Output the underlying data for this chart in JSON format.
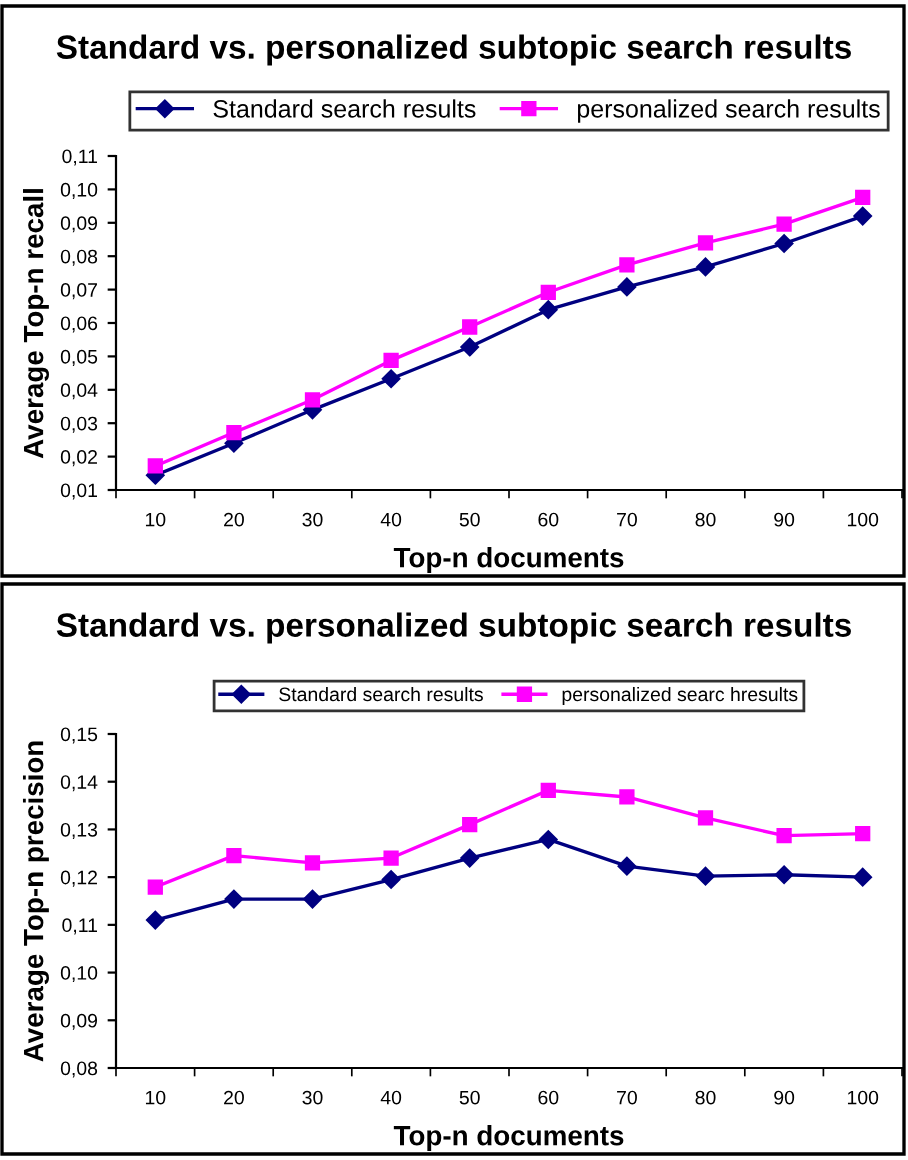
{
  "chart_data": [
    {
      "type": "line",
      "title": "Standard vs. personalized subtopic search results",
      "xlabel": "Top-n documents",
      "ylabel": "Average Top-n recall",
      "categories": [
        "10",
        "20",
        "30",
        "40",
        "50",
        "60",
        "70",
        "80",
        "90",
        "100"
      ],
      "series": [
        {
          "name": "Standard search results",
          "color": "#000080",
          "marker": "diamond",
          "values": [
            0.0144,
            0.024,
            0.034,
            0.0433,
            0.0528,
            0.064,
            0.0708,
            0.0768,
            0.0838,
            0.092
          ]
        },
        {
          "name": "personalized search results",
          "color": "#ff00ff",
          "marker": "square",
          "values": [
            0.0172,
            0.0272,
            0.037,
            0.0488,
            0.0588,
            0.0692,
            0.0774,
            0.084,
            0.0896,
            0.0976
          ]
        }
      ],
      "ylim": [
        0.01,
        0.11
      ],
      "yticks": [
        {
          "value": 0.01,
          "label": "0,01"
        },
        {
          "value": 0.02,
          "label": "0,02"
        },
        {
          "value": 0.03,
          "label": "0,03"
        },
        {
          "value": 0.04,
          "label": "0,04"
        },
        {
          "value": 0.05,
          "label": "0,05"
        },
        {
          "value": 0.06,
          "label": "0,06"
        },
        {
          "value": 0.07,
          "label": "0,07"
        },
        {
          "value": 0.08,
          "label": "0,08"
        },
        {
          "value": 0.09,
          "label": "0,09"
        },
        {
          "value": 0.1,
          "label": "0,10"
        },
        {
          "value": 0.11,
          "label": "0,11"
        }
      ],
      "legend": "top",
      "grid": false,
      "line_style": "solid"
    },
    {
      "type": "line",
      "title": "Standard vs. personalized subtopic search results",
      "xlabel": "Top-n documents",
      "ylabel": "Average Top-n precision",
      "categories": [
        "10",
        "20",
        "30",
        "40",
        "50",
        "60",
        "70",
        "80",
        "90",
        "100"
      ],
      "series": [
        {
          "name": "Standard search results",
          "color": "#000080",
          "marker": "diamond",
          "values": [
            0.111,
            0.1154,
            0.1154,
            0.1195,
            0.124,
            0.1279,
            0.1223,
            0.1202,
            0.1205,
            0.12
          ]
        },
        {
          "name": "personalized searc hresults",
          "color": "#ff00ff",
          "marker": "square",
          "values": [
            0.1179,
            0.1245,
            0.123,
            0.124,
            0.131,
            0.1382,
            0.1368,
            0.1324,
            0.1287,
            0.1291
          ]
        }
      ],
      "ylim": [
        0.08,
        0.15
      ],
      "yticks": [
        {
          "value": 0.08,
          "label": "0,08"
        },
        {
          "value": 0.09,
          "label": "0,09"
        },
        {
          "value": 0.1,
          "label": "0,10"
        },
        {
          "value": 0.11,
          "label": "0,11"
        },
        {
          "value": 0.12,
          "label": "0,12"
        },
        {
          "value": 0.13,
          "label": "0,13"
        },
        {
          "value": 0.14,
          "label": "0,14"
        },
        {
          "value": 0.15,
          "label": "0,15"
        }
      ],
      "legend": "top",
      "grid": false,
      "line_style": "solid"
    }
  ]
}
